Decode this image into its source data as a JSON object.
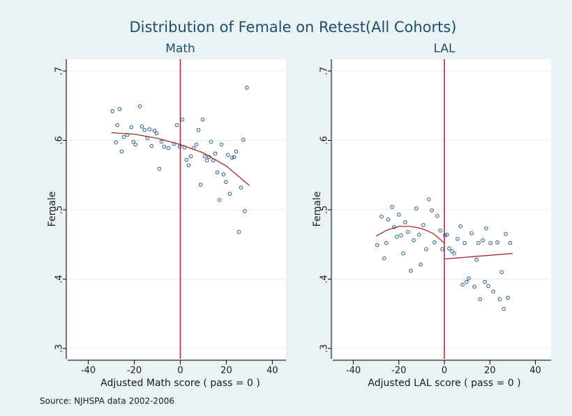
{
  "title": "Distribution of Female on Retest(All Cohorts)",
  "note": "Source: NJHSPA data 2002-2006",
  "chart_data": [
    {
      "type": "scatter",
      "title": "Math",
      "xlabel": "Adjusted Math score ( pass = 0 )",
      "ylabel": "Female",
      "xlim": [
        -42,
        42
      ],
      "ylim": [
        0.285,
        0.717
      ],
      "xticks": [
        -40,
        -20,
        0,
        20,
        40
      ],
      "yticks": [
        {
          "value": 0.3,
          "label": ".3"
        },
        {
          "value": 0.4,
          "label": ".4"
        },
        {
          "value": 0.5,
          "label": ".5"
        },
        {
          "value": 0.6,
          "label": ".6"
        },
        {
          "value": 0.7,
          "label": ".7"
        }
      ],
      "grid": true,
      "xline": 0,
      "xline_color": "#b0183c",
      "series": [
        {
          "type": "scatter",
          "color": "#1f5a8a",
          "x": [
            -29.5,
            -28,
            -27.4,
            -26.4,
            -25.5,
            -24.6,
            -23,
            -21.3,
            -20.4,
            -19.5,
            -17.6,
            -16.7,
            -15.5,
            -14.3,
            -13.4,
            -12.5,
            -11.2,
            -10.3,
            -9.1,
            -8.2,
            -7,
            -5.2,
            -2.7,
            -1.5,
            -0.3,
            0.9,
            1.8,
            2.7,
            3.6,
            4.6,
            5.8,
            7,
            7.9,
            8.8,
            9.7,
            10.6,
            11.5,
            12.5,
            13.4,
            14.3,
            15.2,
            16.1,
            17,
            17.9,
            18.8,
            19.8,
            20.7,
            21.6,
            22.5,
            23.4,
            24.3,
            25.5,
            26.4,
            27.4,
            28,
            28.9
          ],
          "values": [
            0.642,
            0.597,
            0.622,
            0.645,
            0.584,
            0.605,
            0.608,
            0.619,
            0.598,
            0.594,
            0.649,
            0.62,
            0.615,
            0.603,
            0.616,
            0.592,
            0.614,
            0.61,
            0.559,
            0.598,
            0.591,
            0.589,
            0.595,
            0.622,
            0.591,
            0.63,
            0.59,
            0.572,
            0.564,
            0.577,
            0.589,
            0.594,
            0.615,
            0.536,
            0.63,
            0.577,
            0.571,
            0.576,
            0.598,
            0.571,
            0.581,
            0.554,
            0.514,
            0.594,
            0.551,
            0.54,
            0.579,
            0.523,
            0.575,
            0.576,
            0.584,
            0.468,
            0.532,
            0.601,
            0.498,
            0.676
          ]
        },
        {
          "type": "line",
          "color": "#a52a2a",
          "x": [
            -30,
            -20,
            -10,
            0,
            10,
            20,
            30
          ],
          "values": [
            0.611,
            0.609,
            0.603,
            0.594,
            0.582,
            0.563,
            0.535
          ]
        }
      ]
    },
    {
      "type": "scatter",
      "title": "LAL",
      "xlabel": "Adjusted LAL score ( pass = 0 )",
      "ylabel": "Female",
      "xlim": [
        -42,
        42
      ],
      "ylim": [
        0.285,
        0.717
      ],
      "xticks": [
        -40,
        -20,
        0,
        20,
        40
      ],
      "yticks": [
        {
          "value": 0.3,
          "label": ".3"
        },
        {
          "value": 0.4,
          "label": ".4"
        },
        {
          "value": 0.5,
          "label": ".5"
        },
        {
          "value": 0.6,
          "label": ".6"
        },
        {
          "value": 0.7,
          "label": ".7"
        }
      ],
      "grid": true,
      "xline": 0,
      "xline_color": "#b0183c",
      "series": [
        {
          "type": "scatter",
          "color": "#1f5a8a",
          "x": [
            -29.5,
            -27.6,
            -26.4,
            -25.5,
            -24.6,
            -23,
            -22.1,
            -20.9,
            -20,
            -19,
            -18.1,
            -17.2,
            -16,
            -14.7,
            -13.5,
            -12.3,
            -11.1,
            -10.4,
            -9.2,
            -8,
            -6.8,
            -5.5,
            -4.3,
            -3.1,
            -1.8,
            -0.9,
            0.3,
            1.2,
            2.1,
            3.4,
            4.3,
            5.8,
            7.1,
            8,
            8.9,
            9.8,
            10.7,
            12,
            13.2,
            14.1,
            15,
            15.7,
            16.9,
            17.8,
            18.4,
            19.3,
            20.3,
            21.5,
            23.3,
            24.3,
            25.2,
            26.1,
            27,
            27.9,
            28.9
          ],
          "values": [
            0.449,
            0.49,
            0.43,
            0.452,
            0.486,
            0.504,
            0.475,
            0.461,
            0.493,
            0.463,
            0.437,
            0.482,
            0.468,
            0.412,
            0.456,
            0.502,
            0.464,
            0.421,
            0.478,
            0.443,
            0.515,
            0.499,
            0.453,
            0.491,
            0.47,
            0.443,
            0.463,
            0.464,
            0.444,
            0.44,
            0.437,
            0.458,
            0.476,
            0.392,
            0.452,
            0.396,
            0.401,
            0.466,
            0.389,
            0.428,
            0.452,
            0.371,
            0.456,
            0.396,
            0.473,
            0.39,
            0.452,
            0.382,
            0.453,
            0.371,
            0.41,
            0.357,
            0.465,
            0.373,
            0.452
          ]
        },
        {
          "type": "line",
          "color": "#a52a2a",
          "x": [
            -30,
            -25,
            -20,
            -15,
            -10,
            -5,
            0,
            0,
            0,
            30
          ],
          "values": [
            0.462,
            0.471,
            0.476,
            0.476,
            0.473,
            0.466,
            0.452,
            null,
            0.429,
            0.437
          ]
        }
      ]
    }
  ]
}
